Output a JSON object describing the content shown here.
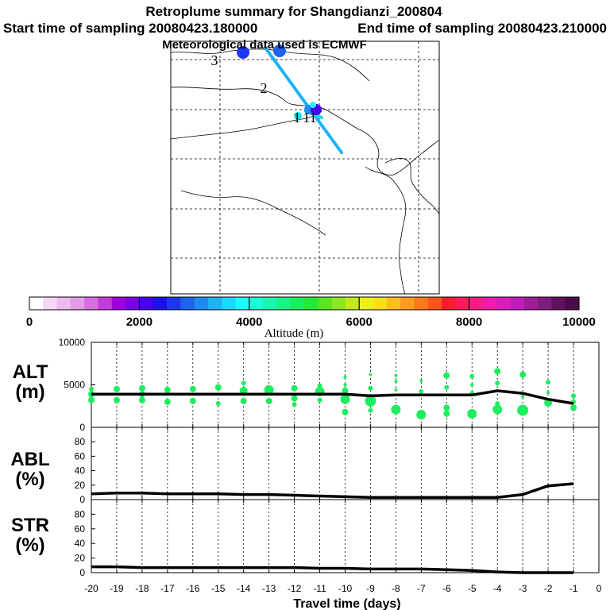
{
  "header": {
    "title": "Retroplume summary for Shangdianzi_200804",
    "start_label": "Start time of sampling 20080423.180000",
    "end_label": "End time of sampling 20080423.210000",
    "met_label": "Meteorological data used is ECMWF"
  },
  "map": {
    "day_labels": [
      "1",
      "2",
      "3",
      "11"
    ]
  },
  "colorbar": {
    "title": "Altitude (m)",
    "tick_labels": [
      "0",
      "2000",
      "4000",
      "6000",
      "8000",
      "10000"
    ],
    "colors": [
      "#ffffff",
      "#f5d6f5",
      "#edbaee",
      "#e49be8",
      "#d66ee2",
      "#c23cd9",
      "#a000e0",
      "#7a00e6",
      "#4a00e8",
      "#1c10e6",
      "#1c38ea",
      "#1e62ee",
      "#1e8af2",
      "#1eb2f6",
      "#1cd8fa",
      "#1cfafc",
      "#1cfad6",
      "#1cf6ae",
      "#1cf286",
      "#1cee5e",
      "#22ea36",
      "#5ae61e",
      "#8ee61e",
      "#c0ea1c",
      "#eef01c",
      "#fcde1c",
      "#fcbe1c",
      "#fc9c1c",
      "#fc7a1c",
      "#fc561c",
      "#fc1c2c",
      "#fc1c5a",
      "#f81c86",
      "#f01cae",
      "#de1cbe",
      "#c01cbe",
      "#a01c9c",
      "#801c7e",
      "#641060",
      "#4c0a4a"
    ]
  },
  "panels": {
    "alt": {
      "label_top": "ALT",
      "label_bottom": "(m)"
    },
    "abl": {
      "label_top": "ABL",
      "label_bottom": "(%)"
    },
    "str": {
      "label_top": "STR",
      "label_bottom": "(%)"
    }
  },
  "xaxis": {
    "title": "Travel time (days)",
    "tick_labels": [
      "-20",
      "-19",
      "-18",
      "-17",
      "-16",
      "-15",
      "-14",
      "-13",
      "-12",
      "-11",
      "-10",
      "-9",
      "-8",
      "-7",
      "-6",
      "-5",
      "-4",
      "-3",
      "-2",
      "-1",
      "0"
    ]
  },
  "chart_data": [
    {
      "type": "line",
      "name": "ALT",
      "xlabel": "Travel time (days)",
      "ylabel": "ALT (m)",
      "xlim": [
        -20,
        0
      ],
      "ylim": [
        0,
        10000
      ],
      "yticks": [
        10000,
        5000,
        0
      ],
      "x": [
        -20,
        -19,
        -18,
        -17,
        -16,
        -15,
        -14,
        -13,
        -12,
        -11,
        -10,
        -9,
        -8,
        -7,
        -6,
        -5,
        -4,
        -3,
        -2,
        -1
      ],
      "values": [
        3900,
        3900,
        3900,
        3900,
        3900,
        3900,
        3900,
        3900,
        3900,
        3900,
        3900,
        3700,
        3800,
        3800,
        3800,
        3800,
        4300,
        4000,
        3300,
        2800
      ],
      "color": "#000000",
      "cluster_points": [
        {
          "x": -20,
          "y": 4500,
          "r": 3
        },
        {
          "x": -20,
          "y": 3900,
          "r": 4
        },
        {
          "x": -20,
          "y": 3200,
          "r": 4
        },
        {
          "x": -19,
          "y": 4500,
          "r": 4
        },
        {
          "x": -19,
          "y": 3200,
          "r": 4
        },
        {
          "x": -18,
          "y": 4600,
          "r": 4
        },
        {
          "x": -18,
          "y": 3900,
          "r": 4
        },
        {
          "x": -18,
          "y": 3200,
          "r": 4
        },
        {
          "x": -17,
          "y": 4400,
          "r": 4
        },
        {
          "x": -17,
          "y": 3000,
          "r": 4
        },
        {
          "x": -16,
          "y": 4500,
          "r": 4
        },
        {
          "x": -16,
          "y": 3100,
          "r": 4
        },
        {
          "x": -15,
          "y": 4700,
          "r": 4
        },
        {
          "x": -15,
          "y": 2800,
          "r": 3
        },
        {
          "x": -14,
          "y": 5200,
          "r": 3
        },
        {
          "x": -14,
          "y": 4300,
          "r": 5
        },
        {
          "x": -14,
          "y": 3100,
          "r": 4
        },
        {
          "x": -13,
          "y": 4400,
          "r": 6
        },
        {
          "x": -13,
          "y": 3100,
          "r": 4
        },
        {
          "x": -12,
          "y": 4600,
          "r": 4
        },
        {
          "x": -12,
          "y": 3400,
          "r": 4
        },
        {
          "x": -12,
          "y": 2700,
          "r": 3
        },
        {
          "x": -11,
          "y": 4900,
          "r": 3
        },
        {
          "x": -11,
          "y": 4200,
          "r": 6
        },
        {
          "x": -11,
          "y": 3200,
          "r": 3
        },
        {
          "x": -10,
          "y": 5900,
          "r": 2
        },
        {
          "x": -10,
          "y": 5000,
          "r": 2
        },
        {
          "x": -10,
          "y": 4300,
          "r": 4
        },
        {
          "x": -10,
          "y": 3300,
          "r": 6
        },
        {
          "x": -10,
          "y": 1800,
          "r": 4
        },
        {
          "x": -9,
          "y": 6200,
          "r": 2
        },
        {
          "x": -9,
          "y": 4600,
          "r": 3
        },
        {
          "x": -9,
          "y": 3100,
          "r": 7
        },
        {
          "x": -9,
          "y": 2000,
          "r": 3
        },
        {
          "x": -8,
          "y": 6100,
          "r": 2
        },
        {
          "x": -8,
          "y": 5400,
          "r": 2
        },
        {
          "x": -8,
          "y": 4400,
          "r": 2
        },
        {
          "x": -8,
          "y": 2100,
          "r": 6
        },
        {
          "x": -7,
          "y": 5500,
          "r": 2
        },
        {
          "x": -7,
          "y": 4200,
          "r": 3
        },
        {
          "x": -7,
          "y": 1500,
          "r": 6
        },
        {
          "x": -6,
          "y": 6100,
          "r": 4
        },
        {
          "x": -6,
          "y": 4700,
          "r": 3
        },
        {
          "x": -6,
          "y": 2300,
          "r": 4
        },
        {
          "x": -6,
          "y": 1600,
          "r": 4
        },
        {
          "x": -5,
          "y": 6000,
          "r": 3
        },
        {
          "x": -5,
          "y": 5000,
          "r": 2
        },
        {
          "x": -5,
          "y": 4000,
          "r": 3
        },
        {
          "x": -5,
          "y": 1600,
          "r": 6
        },
        {
          "x": -4,
          "y": 6600,
          "r": 4
        },
        {
          "x": -4,
          "y": 5200,
          "r": 3
        },
        {
          "x": -4,
          "y": 2800,
          "r": 3
        },
        {
          "x": -4,
          "y": 2100,
          "r": 6
        },
        {
          "x": -3,
          "y": 6200,
          "r": 4
        },
        {
          "x": -3,
          "y": 3600,
          "r": 2
        },
        {
          "x": -3,
          "y": 2000,
          "r": 7
        },
        {
          "x": -2,
          "y": 5300,
          "r": 3
        },
        {
          "x": -2,
          "y": 4100,
          "r": 2
        },
        {
          "x": -2,
          "y": 2900,
          "r": 5
        },
        {
          "x": -1,
          "y": 3700,
          "r": 3
        },
        {
          "x": -1,
          "y": 3000,
          "r": 3
        },
        {
          "x": -1,
          "y": 2300,
          "r": 4
        }
      ],
      "cluster_color": "#1cee5e"
    },
    {
      "type": "line",
      "name": "ABL",
      "xlabel": "Travel time (days)",
      "ylabel": "ABL (%)",
      "xlim": [
        -20,
        0
      ],
      "ylim": [
        0,
        100
      ],
      "yticks": [
        80,
        60,
        40,
        20,
        0
      ],
      "x": [
        -20,
        -19,
        -18,
        -17,
        -16,
        -15,
        -14,
        -13,
        -12,
        -11,
        -10,
        -9,
        -8,
        -7,
        -6,
        -5,
        -4,
        -3,
        -2,
        -1
      ],
      "values": [
        8,
        9,
        9,
        8,
        8,
        8,
        7,
        7,
        6,
        5,
        4,
        3,
        3,
        3,
        3,
        3,
        3,
        7,
        19,
        22
      ],
      "color": "#000000"
    },
    {
      "type": "line",
      "name": "STR",
      "xlabel": "Travel time (days)",
      "ylabel": "STR (%)",
      "xlim": [
        -20,
        0
      ],
      "ylim": [
        0,
        100
      ],
      "yticks": [
        80,
        60,
        40,
        20,
        0
      ],
      "x": [
        -20,
        -19,
        -18,
        -17,
        -16,
        -15,
        -14,
        -13,
        -12,
        -11,
        -10,
        -9,
        -8,
        -7,
        -6,
        -5,
        -4,
        -3,
        -2,
        -1
      ],
      "values": [
        8,
        8,
        7,
        7,
        7,
        7,
        7,
        7,
        7,
        6,
        6,
        5,
        5,
        5,
        4,
        3,
        1,
        0,
        0,
        0
      ],
      "color": "#000000"
    }
  ]
}
